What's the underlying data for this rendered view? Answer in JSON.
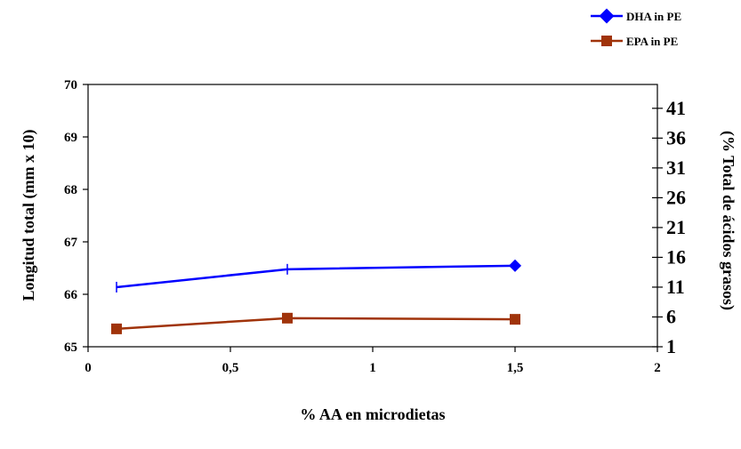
{
  "chart_data": {
    "type": "line",
    "xlabel": "% AA en microdietas",
    "ylabel_left": "Longitud total  (mm x 10)",
    "ylabel_right": "(% Total de ácidos grasos)",
    "x_ticks": [
      "0",
      "0,5",
      "1",
      "1,5",
      "2"
    ],
    "xlim": [
      0,
      2
    ],
    "y_left_ticks": [
      "65",
      "66",
      "67",
      "68",
      "69",
      "70"
    ],
    "y_left_lim": [
      65,
      70
    ],
    "y_right_ticks": [
      "1",
      "6",
      "11",
      "16",
      "21",
      "26",
      "31",
      "36",
      "41"
    ],
    "y_right_lim": [
      1,
      45
    ],
    "legend_position": "top-right",
    "grid": false,
    "series": [
      {
        "name": "DHA in PE",
        "axis": "right",
        "color": "#0000ff",
        "marker": "diamond",
        "x": [
          0.1,
          0.7,
          1.5
        ],
        "y": [
          11.0,
          14.0,
          14.6
        ]
      },
      {
        "name": "EPA in PE",
        "axis": "right",
        "color": "#a0330a",
        "marker": "square",
        "x": [
          0.1,
          0.7,
          1.5
        ],
        "y": [
          4.0,
          5.8,
          5.6
        ]
      }
    ]
  }
}
